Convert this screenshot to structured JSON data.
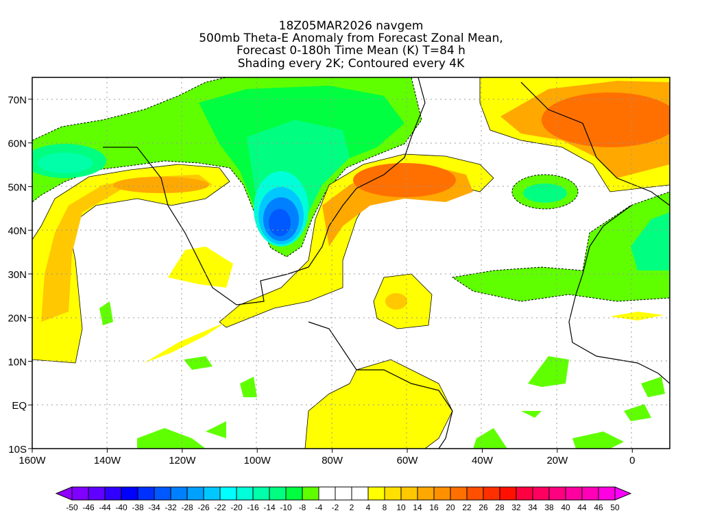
{
  "title": {
    "lines": [
      "18Z05MAR2026 navgem",
      "500mb Theta-E Anomaly from Forecast Zonal Mean,",
      "Forecast 0-180h Time Mean (K) T=84 h",
      "Shading every 2K; Contoured every 4K"
    ]
  },
  "axes": {
    "lon_labels": [
      "160W",
      "140W",
      "120W",
      "100W",
      "80W",
      "60W",
      "40W",
      "20W",
      "0"
    ],
    "lon_values": [
      -160,
      -140,
      -120,
      -100,
      -80,
      -60,
      -40,
      -20,
      0
    ],
    "lat_labels": [
      "70N",
      "60N",
      "50N",
      "40N",
      "30N",
      "20N",
      "10N",
      "EQ",
      "10S"
    ],
    "lat_values": [
      70,
      60,
      50,
      40,
      30,
      20,
      10,
      0,
      -10
    ],
    "lon_range": [
      -160,
      10
    ],
    "lat_range": [
      -10,
      75
    ]
  },
  "colorbar": {
    "labels": [
      "-50",
      "-46",
      "-44",
      "-40",
      "-38",
      "-34",
      "-32",
      "-28",
      "-26",
      "-22",
      "-20",
      "-16",
      "-14",
      "-10",
      "-8",
      "-4",
      "-2",
      "2",
      "4",
      "8",
      "10",
      "14",
      "16",
      "20",
      "22",
      "26",
      "28",
      "32",
      "34",
      "38",
      "40",
      "44",
      "46",
      "50"
    ],
    "colors": [
      "#7f00ff",
      "#6000ff",
      "#3000ff",
      "#0000ff",
      "#0030ff",
      "#0058ff",
      "#0080ff",
      "#00a0ff",
      "#00c8ff",
      "#00ffff",
      "#00ffd8",
      "#00ffa8",
      "#00ff80",
      "#00ff40",
      "#60ff00",
      "#ffffff",
      "#ffffff",
      "#ffffff",
      "#ffff00",
      "#ffe000",
      "#ffc800",
      "#ffa800",
      "#ff9000",
      "#ff7000",
      "#ff5000",
      "#ff3000",
      "#ff1000",
      "#ff0040",
      "#ff0060",
      "#ff0080",
      "#ff00a0",
      "#ff00b8",
      "#ff00e0"
    ],
    "under_color": "#9000ff",
    "over_color": "#ff00ff"
  }
}
